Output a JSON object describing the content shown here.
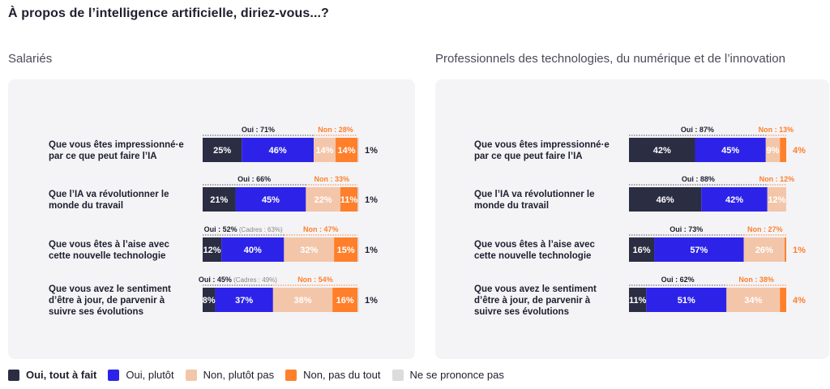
{
  "title": "À propos de l’intelligence artificielle, diriez-vous...?",
  "colors": {
    "tout_a_fait": "#2b2d42",
    "plutot": "#2d23e8",
    "plutot_pas": "#f3c6aa",
    "pas_du_tout": "#ff7f2a",
    "nsp": "#dcdcdc",
    "oui_text": "#1e1e2e",
    "non_text": "#ff7f2a"
  },
  "legend": [
    {
      "label": "Oui, tout à fait",
      "color": "#2b2d42"
    },
    {
      "label": "Oui, plutôt",
      "color": "#2d23e8"
    },
    {
      "label": "Non, plutôt pas",
      "color": "#f3c6aa"
    },
    {
      "label": "Non, pas du tout",
      "color": "#ff7f2a"
    },
    {
      "label": "Ne se prononce pas",
      "color": "#dcdcdc"
    }
  ],
  "chart_data": [
    {
      "type": "bar",
      "stacked": true,
      "orientation": "horizontal",
      "title": "Salariés",
      "categories": [
        [
          "Que vous êtes impressionné·e",
          "par ce que peut faire l’IA"
        ],
        [
          "Que l’IA va révolutionner le",
          "monde du travail"
        ],
        [
          "Que vous êtes à l’aise avec",
          "cette nouvelle technologie"
        ],
        [
          "Que vous avez le sentiment",
          "d’être à jour, de parvenir à",
          "suivre ses évolutions"
        ]
      ],
      "series": [
        {
          "name": "Oui, tout à fait",
          "values": [
            25,
            21,
            12,
            8
          ]
        },
        {
          "name": "Oui, plutôt",
          "values": [
            46,
            45,
            40,
            37
          ]
        },
        {
          "name": "Non, plutôt pas",
          "values": [
            14,
            22,
            32,
            38
          ]
        },
        {
          "name": "Non, pas du tout",
          "values": [
            14,
            11,
            15,
            16
          ]
        },
        {
          "name": "Ne se prononce pas",
          "values": [
            1,
            1,
            1,
            1
          ]
        }
      ],
      "oui_labels": [
        "Oui : 71%",
        "Oui : 66%",
        "Oui : 52%",
        "Oui : 45%"
      ],
      "oui_notes": [
        "",
        "",
        "(Cadres : 63%)",
        "(Cadres : 49%)"
      ],
      "non_labels": [
        "Non : 28%",
        "Non : 33%",
        "Non : 47%",
        "Non : 54%"
      ],
      "nsp_labels": [
        "1%",
        "1%",
        "1%",
        "1%"
      ]
    },
    {
      "type": "bar",
      "stacked": true,
      "orientation": "horizontal",
      "title": "Professionnels des technologies, du numérique et de l’innovation",
      "categories": [
        [
          "Que vous êtes impressionné·e",
          "par ce que peut faire l’IA"
        ],
        [
          "Que l’IA va révolutionner le",
          "monde du travail"
        ],
        [
          "Que vous êtes à l’aise avec",
          "cette nouvelle technologie"
        ],
        [
          "Que vous avez le sentiment",
          "d’être à jour, de parvenir à",
          "suivre ses évolutions"
        ]
      ],
      "series": [
        {
          "name": "Oui, tout à fait",
          "values": [
            42,
            46,
            16,
            11
          ]
        },
        {
          "name": "Oui, plutôt",
          "values": [
            45,
            42,
            57,
            51
          ]
        },
        {
          "name": "Non, plutôt pas",
          "values": [
            9,
            12,
            26,
            34
          ]
        },
        {
          "name": "Non, pas du tout",
          "values": [
            4,
            0,
            1,
            4
          ]
        },
        {
          "name": "Ne se prononce pas",
          "values": [
            0,
            0,
            0,
            0
          ]
        }
      ],
      "oui_labels": [
        "Oui : 87%",
        "Oui : 88%",
        "Oui : 73%",
        "Oui : 62%"
      ],
      "oui_notes": [
        "",
        "",
        "",
        ""
      ],
      "non_labels": [
        "Non : 13%",
        "Non : 12%",
        "Non : 27%",
        "Non : 38%"
      ],
      "outside_labels": [
        "4%",
        "",
        "1%",
        "4%"
      ]
    }
  ]
}
